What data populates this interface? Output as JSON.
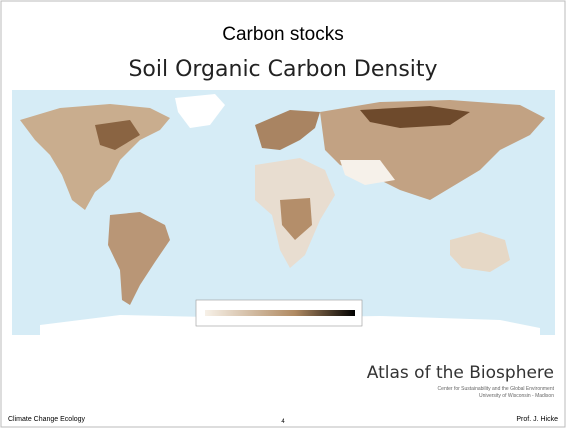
{
  "slide": {
    "title": "Carbon stocks",
    "figure": {
      "title": "Soil Organic Carbon Density",
      "credit": {
        "name": "Atlas of the Biosphere",
        "line1": "Center for Sustainability and the Global Environment",
        "line2": "University of Wisconsin - Madison"
      }
    },
    "footer": {
      "left": "Climate Change Ecology",
      "center": "4",
      "right": "Prof. J. Hicke"
    }
  }
}
